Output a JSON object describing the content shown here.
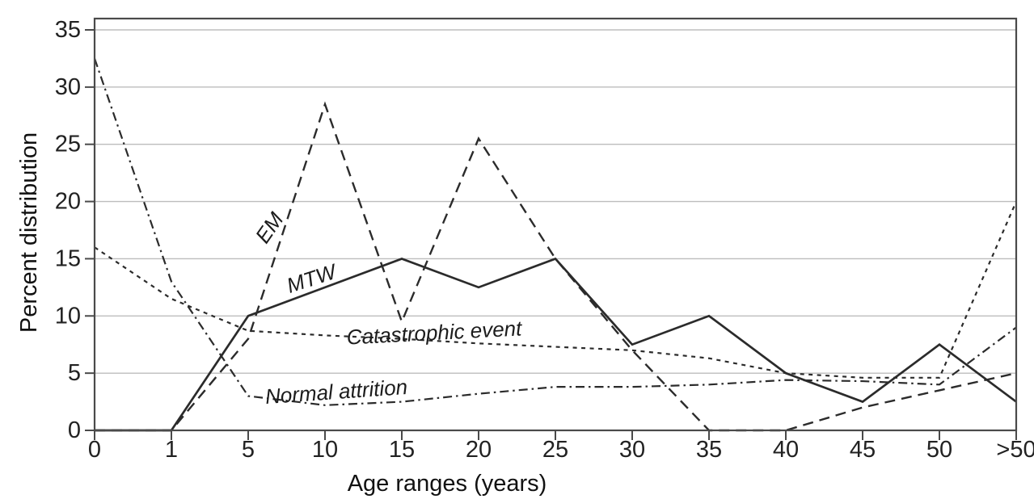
{
  "figure": {
    "background": "#ffffff",
    "line_color": "#2b2b2b",
    "grid_color": "#bdbdbd",
    "frame_color": "#4a4a4a"
  },
  "chart_data": {
    "type": "line",
    "title": "",
    "xlabel": "Age ranges (years)",
    "ylabel": "Percent distribution",
    "categories": [
      "0",
      "1",
      "5",
      "10",
      "15",
      "20",
      "25",
      "30",
      "35",
      "40",
      "45",
      "50",
      ">50"
    ],
    "ylim": [
      0,
      35
    ],
    "yticks": [
      0,
      5,
      10,
      15,
      20,
      25,
      30,
      35
    ],
    "grid": "horizontal",
    "legend": "inline-line-labels",
    "series": [
      {
        "name": "EM",
        "line_style": "long-dash",
        "color": "#2b2b2b",
        "values": [
          0,
          0,
          8,
          28.5,
          9.5,
          25.5,
          15,
          7,
          0,
          0,
          2,
          3.5,
          5
        ]
      },
      {
        "name": "MTW",
        "line_style": "solid",
        "color": "#2b2b2b",
        "values": [
          0,
          0,
          10,
          12.5,
          15,
          12.5,
          15,
          7.5,
          10,
          5,
          2.5,
          7.5,
          2.5
        ]
      },
      {
        "name": "Catastrophic event",
        "line_style": "short-dash",
        "color": "#2b2b2b",
        "values": [
          16,
          11.5,
          8.7,
          8.3,
          8,
          7.6,
          7.3,
          7,
          6.3,
          5,
          4.6,
          4.6,
          20
        ]
      },
      {
        "name": "Normal attrition",
        "line_style": "dash-dot",
        "color": "#2b2b2b",
        "values": [
          32.5,
          13,
          3,
          2.2,
          2.5,
          3.2,
          3.8,
          3.8,
          4,
          4.4,
          4.3,
          4,
          9
        ]
      }
    ]
  }
}
